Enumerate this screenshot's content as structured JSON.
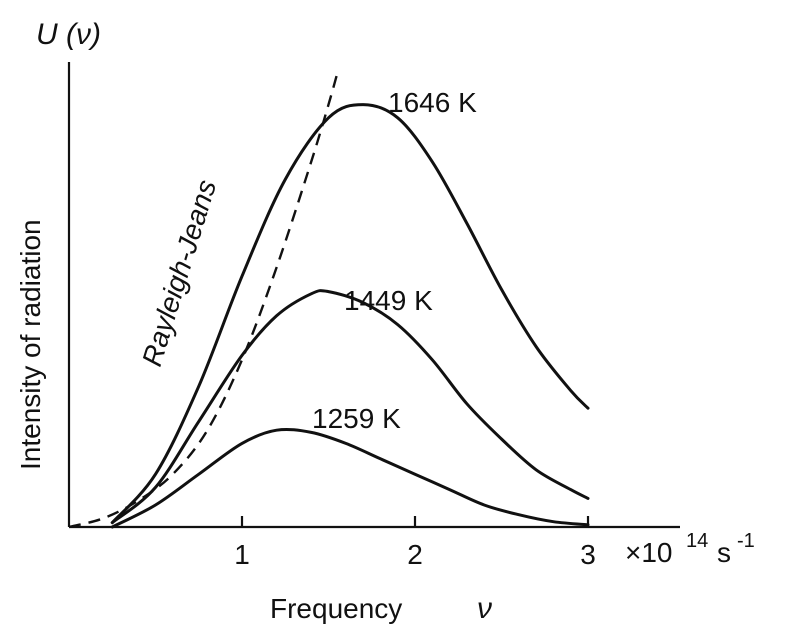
{
  "chart_data": {
    "type": "line",
    "ylabel_symbol": "U (ν)",
    "ylabel": "Intensity  of radiation",
    "xlabel": "Frequency",
    "xlabel_symbol": "ν",
    "x_unit_prefix": "×10",
    "x_unit_exp": "14",
    "x_unit_s": "s",
    "x_unit_s_exp": "-1",
    "x_ticks": [
      {
        "value": 1,
        "label": "1"
      },
      {
        "value": 2,
        "label": "2"
      },
      {
        "value": 3,
        "label": "3"
      }
    ],
    "xlim": [
      0,
      3.55
    ],
    "ylim": [
      0,
      1.0
    ],
    "series": [
      {
        "name": "1646 K",
        "style": "solid",
        "points": [
          [
            0.25,
            0.01
          ],
          [
            0.5,
            0.12
          ],
          [
            0.75,
            0.32
          ],
          [
            1.0,
            0.57
          ],
          [
            1.25,
            0.79
          ],
          [
            1.5,
            0.93
          ],
          [
            1.7,
            0.96
          ],
          [
            1.9,
            0.93
          ],
          [
            2.1,
            0.83
          ],
          [
            2.3,
            0.69
          ],
          [
            2.5,
            0.54
          ],
          [
            2.7,
            0.41
          ],
          [
            2.9,
            0.31
          ],
          [
            3.0,
            0.27
          ]
        ]
      },
      {
        "name": "1449 K",
        "style": "solid",
        "points": [
          [
            0.25,
            0.01
          ],
          [
            0.5,
            0.09
          ],
          [
            0.75,
            0.24
          ],
          [
            1.0,
            0.39
          ],
          [
            1.2,
            0.48
          ],
          [
            1.4,
            0.53
          ],
          [
            1.5,
            0.535
          ],
          [
            1.7,
            0.51
          ],
          [
            1.9,
            0.46
          ],
          [
            2.1,
            0.38
          ],
          [
            2.3,
            0.28
          ],
          [
            2.5,
            0.2
          ],
          [
            2.7,
            0.13
          ],
          [
            2.9,
            0.085
          ],
          [
            3.0,
            0.065
          ]
        ]
      },
      {
        "name": "1259 K",
        "style": "solid",
        "points": [
          [
            0.25,
            0.0
          ],
          [
            0.5,
            0.05
          ],
          [
            0.75,
            0.12
          ],
          [
            1.0,
            0.19
          ],
          [
            1.2,
            0.22
          ],
          [
            1.4,
            0.215
          ],
          [
            1.6,
            0.19
          ],
          [
            1.8,
            0.155
          ],
          [
            2.0,
            0.12
          ],
          [
            2.2,
            0.085
          ],
          [
            2.4,
            0.05
          ],
          [
            2.6,
            0.028
          ],
          [
            2.8,
            0.012
          ],
          [
            3.0,
            0.005
          ]
        ]
      },
      {
        "name": "Rayleigh-Jeans",
        "style": "dashed",
        "points": [
          [
            0.0,
            0.0
          ],
          [
            0.2,
            0.02
          ],
          [
            0.4,
            0.06
          ],
          [
            0.6,
            0.12
          ],
          [
            0.8,
            0.22
          ],
          [
            1.0,
            0.38
          ],
          [
            1.2,
            0.59
          ],
          [
            1.4,
            0.83
          ],
          [
            1.5,
            0.96
          ],
          [
            1.55,
            1.03
          ]
        ]
      }
    ],
    "series_labels": [
      {
        "text": "1646 K"
      },
      {
        "text": "1449 K"
      },
      {
        "text": "1259 K"
      },
      {
        "text": "Rayleigh-Jeans"
      }
    ],
    "grid": false,
    "legend": "none"
  }
}
